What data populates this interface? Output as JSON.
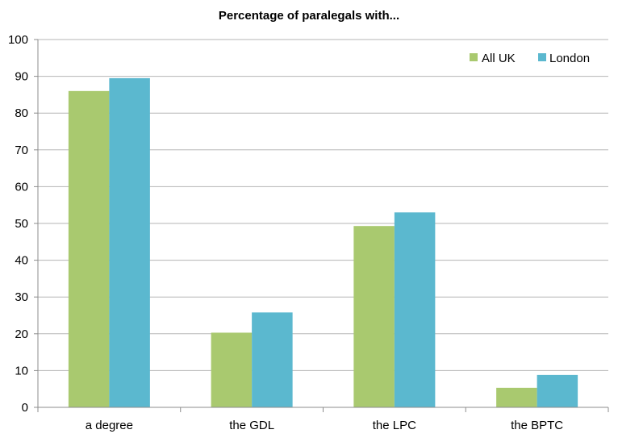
{
  "chart_data": {
    "type": "bar",
    "title": "Percentage of paralegals with...",
    "xlabel": "",
    "ylabel": "",
    "categories": [
      "a degree",
      "the GDL",
      "the LPC",
      "the BPTC"
    ],
    "series": [
      {
        "name": "All UK",
        "values": [
          86,
          20.3,
          49.3,
          5.3
        ],
        "color": "#a9c96f"
      },
      {
        "name": "London",
        "values": [
          89.5,
          25.8,
          53,
          8.8
        ],
        "color": "#5bb8cf"
      }
    ],
    "ylim": [
      0,
      100
    ],
    "yticks": [
      "0",
      "10",
      "20",
      "30",
      "40",
      "50",
      "60",
      "70",
      "80",
      "90",
      "100"
    ],
    "grid": true,
    "legend_position": "top-right",
    "colors": {
      "grid": "#b5b5b5",
      "axis": "#8c8c8c"
    }
  }
}
